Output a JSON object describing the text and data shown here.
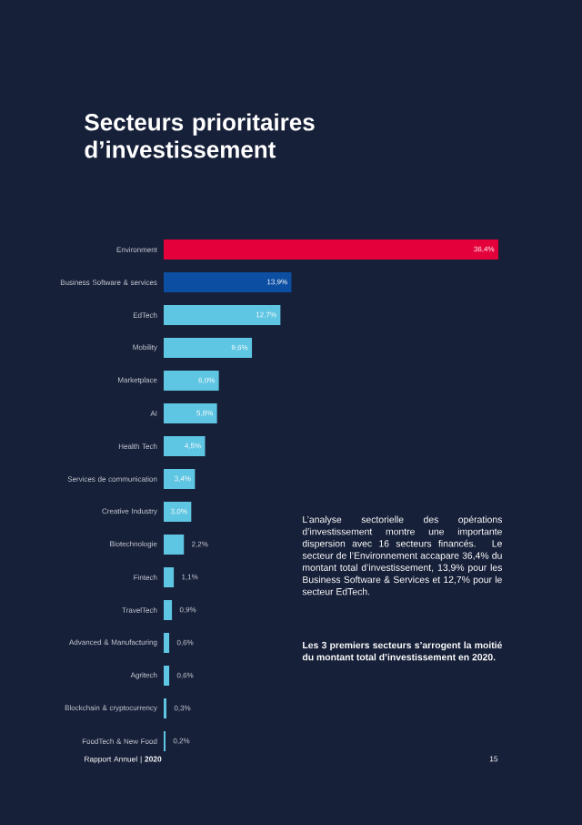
{
  "chart_data": {
    "type": "bar",
    "orientation": "horizontal",
    "title": "Secteurs prioritaires d’investissement",
    "categories": [
      "Environment",
      "Business Software & services",
      "EdTech",
      "Mobility",
      "Marketplace",
      "AI",
      "Health Tech",
      "Services de communication",
      "Creative Industry",
      "Biotechnologie",
      "Fintech",
      "TravelTech",
      "Advanced & Manufacturing",
      "Agritech",
      "Blockchain & cryptocurrency",
      "FoodTech & New Food"
    ],
    "values": [
      36.4,
      13.9,
      12.7,
      9.6,
      6.0,
      5.8,
      4.5,
      3.4,
      3.0,
      2.2,
      1.1,
      0.9,
      0.6,
      0.6,
      0.3,
      0.2
    ],
    "value_labels": [
      "36,4%",
      "13,9%",
      "12,7%",
      "9,6%",
      "6,0%",
      "5,8%",
      "4,5%",
      "3,4%",
      "3,0%",
      "2,2%",
      "1,1%",
      "0,9%",
      "0,6%",
      "0,6%",
      "0,3%",
      "0,2%"
    ],
    "colors": [
      "#e4003a",
      "#0b4ea2",
      "#5ec5e2",
      "#5ec5e2",
      "#5ec5e2",
      "#5ec5e2",
      "#5ec5e2",
      "#5ec5e2",
      "#5ec5e2",
      "#5ec5e2",
      "#5ec5e2",
      "#5ec5e2",
      "#5ec5e2",
      "#5ec5e2",
      "#5ec5e2",
      "#5ec5e2"
    ],
    "annotations": [
      "L’analyse sectorielle des opérations d’investissement montre une importante dispersion avec 16 secteurs financés. Le secteur de l’Environnement accapare 36,4% du montant total d’investissement, 13,9% pour les Business Software & Services et 12,7% pour le secteur EdTech.",
      "**Les 3 premiers secteurs s’arrogent la moitié du montant total d’investissement en 2020.**",
      "Rapport Annuel | **2020**",
      "15"
    ]
  }
}
